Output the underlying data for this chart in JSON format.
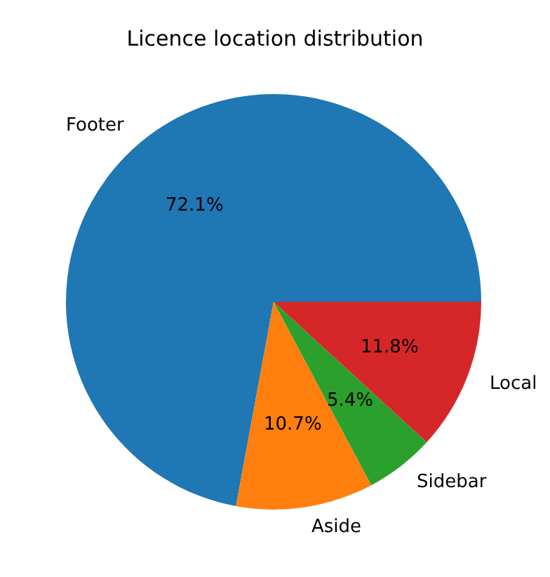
{
  "chart_data": {
    "type": "pie",
    "title": "Licence location distribution",
    "categories": [
      "Footer",
      "Aside",
      "Sidebar",
      "Local"
    ],
    "values": [
      72.1,
      10.7,
      5.4,
      11.8
    ],
    "colors": [
      "#1f77b4",
      "#ff7f0e",
      "#2ca02c",
      "#d62728"
    ],
    "value_labels": [
      "72.1%",
      "10.7%",
      "5.4%",
      "11.8%"
    ],
    "legend": false
  }
}
